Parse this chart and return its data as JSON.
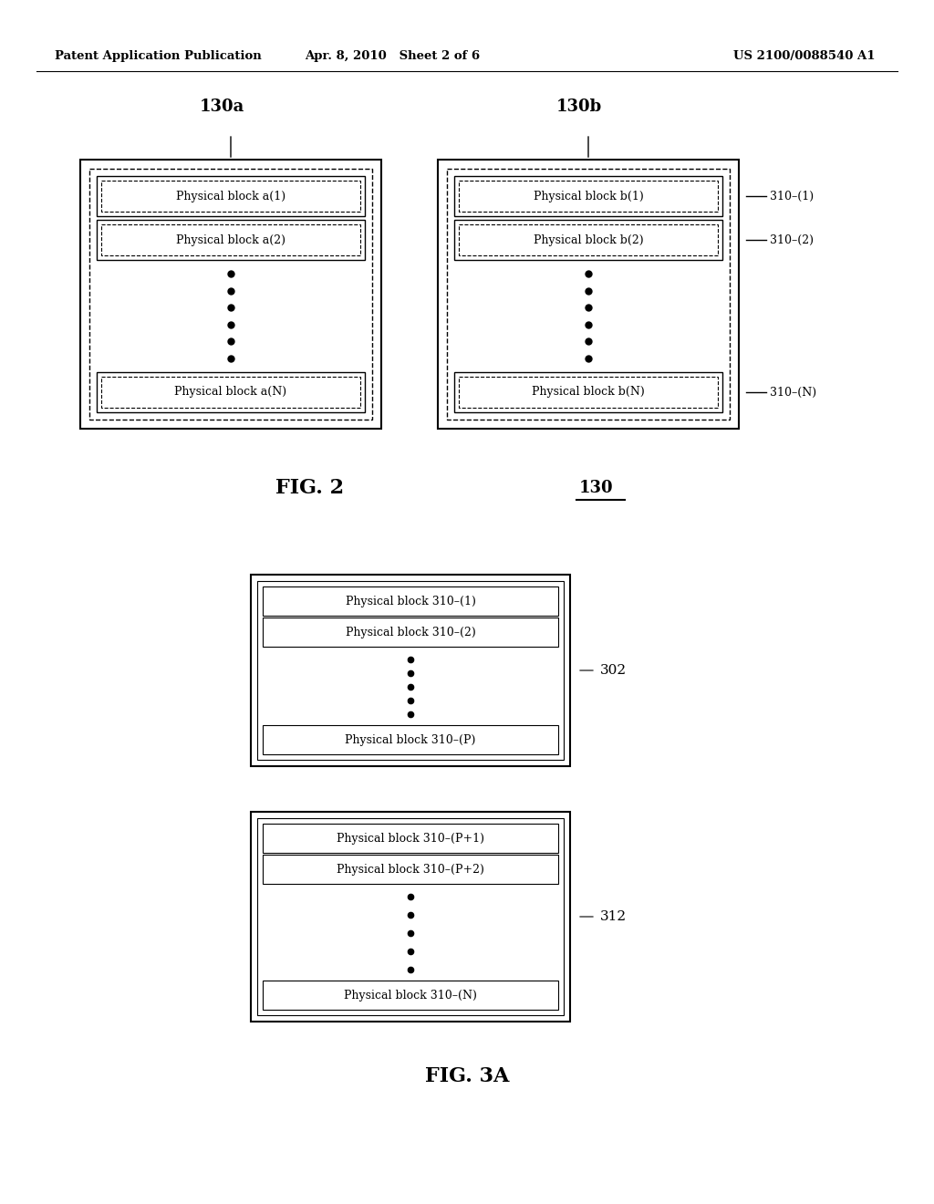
{
  "bg_color": "#ffffff",
  "header_left": "Patent Application Publication",
  "header_mid": "Apr. 8, 2010   Sheet 2 of 6",
  "header_right": "US 2100/0088540 A1",
  "fig2": {
    "label_a": "130a",
    "label_b": "130b",
    "label_130": "130",
    "fig_label": "FIG. 2",
    "row1_label": "310–(1)",
    "row2_label": "310–(2)",
    "rowN_label": "310–(N)",
    "cell_a1": "Physical block a(1)",
    "cell_a2": "Physical block a(2)",
    "cell_aN": "Physical block a(N)",
    "cell_b1": "Physical block b(1)",
    "cell_b2": "Physical block b(2)",
    "cell_bN": "Physical block b(N)"
  },
  "fig3a": {
    "fig_label": "FIG. 3A",
    "box302_label": "302",
    "box312_label": "312",
    "box302_rows": [
      "Physical block 310–(1)",
      "Physical block 310–(2)"
    ],
    "box302_last": "Physical block 310–(P)",
    "box312_rows": [
      "Physical block 310–(P+1)",
      "Physical block 310–(P+2)"
    ],
    "box312_last": "Physical block 310–(N)"
  }
}
